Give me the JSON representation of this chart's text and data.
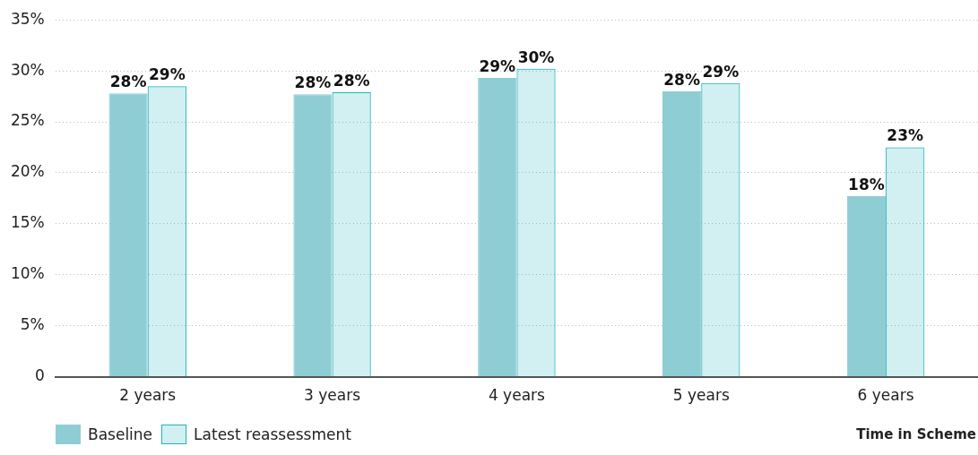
{
  "chart_data": {
    "type": "bar",
    "xlabel": "Time in Scheme",
    "categories": [
      "2 years",
      "3 years",
      "4 years",
      "5 years",
      "6 years"
    ],
    "series": [
      {
        "name": "Baseline",
        "color": "#8fcdd4",
        "values": [
          27.8,
          27.7,
          29.3,
          28.0,
          17.7
        ],
        "value_labels": [
          "28%",
          "28%",
          "29%",
          "28%",
          "18%"
        ]
      },
      {
        "name": "Latest reassessment",
        "color": "#1fb3bb",
        "values": [
          28.5,
          27.9,
          30.2,
          28.8,
          22.5
        ],
        "value_labels": [
          "29%",
          "28%",
          "30%",
          "29%",
          "23%"
        ]
      }
    ],
    "ylim": [
      0,
      35
    ],
    "yticks": [
      0,
      {
        "value": 5,
        "label": "5%"
      },
      {
        "value": 10,
        "label": "10%"
      },
      {
        "value": 15,
        "label": "15%"
      },
      {
        "value": 20,
        "label": "20%"
      },
      {
        "value": 25,
        "label": "25%"
      },
      {
        "value": 30,
        "label": "30%"
      },
      {
        "value": 35,
        "label": "35%"
      }
    ],
    "grid": "y",
    "legend": "bottom left"
  }
}
